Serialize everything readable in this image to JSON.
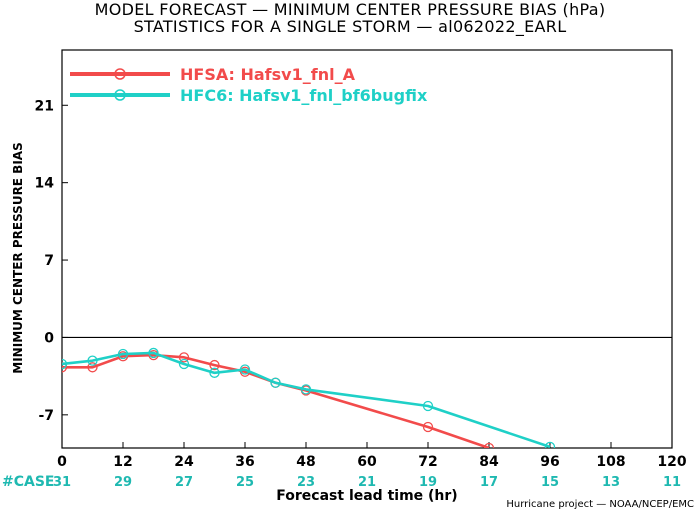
{
  "header": {
    "title_line1": "MODEL FORECAST — MINIMUM CENTER PRESSURE BIAS (hPa)",
    "title_line2": "STATISTICS FOR A SINGLE STORM — al062022_EARL"
  },
  "footer": {
    "credit": "Hurricane project — NOAA/NCEP/EMC"
  },
  "chart_data": {
    "type": "line",
    "title": "MODEL FORECAST — MINIMUM CENTER PRESSURE BIAS (hPa)",
    "subtitle": "STATISTICS FOR A SINGLE STORM — al062022_EARL",
    "xlabel": "Forecast lead time (hr)",
    "ylabel": "MINIMUM CENTER PRESSURE BIAS",
    "xlim": [
      0,
      120
    ],
    "ylim": [
      -10,
      26
    ],
    "xticks": [
      0,
      12,
      24,
      36,
      48,
      60,
      72,
      84,
      96,
      108,
      120
    ],
    "yticks": [
      -7,
      0,
      7,
      14,
      21
    ],
    "zero_line": true,
    "grid": false,
    "legend_position": "top-left",
    "case_label": "#CASE",
    "cases": [
      31,
      29,
      27,
      25,
      23,
      21,
      19,
      17,
      15,
      13,
      11
    ],
    "series": [
      {
        "name": "HFSA: Hafsv1_fnl_A",
        "color": "#f24b4b",
        "x": [
          0,
          6,
          12,
          18,
          24,
          30,
          36,
          42,
          48,
          72,
          84
        ],
        "y": [
          -2.7,
          -2.7,
          -1.7,
          -1.6,
          -1.8,
          -2.5,
          -3.1,
          -4.1,
          -4.8,
          -8.1,
          -10
        ]
      },
      {
        "name": "HFC6: Hafsv1_fnl_bf6bugfix",
        "color": "#1fd0c7",
        "x": [
          0,
          6,
          12,
          18,
          24,
          30,
          36,
          42,
          48,
          72,
          96
        ],
        "y": [
          -2.4,
          -2.1,
          -1.5,
          -1.4,
          -2.4,
          -3.2,
          -2.9,
          -4.1,
          -4.7,
          -6.2,
          -9.9
        ]
      }
    ]
  }
}
